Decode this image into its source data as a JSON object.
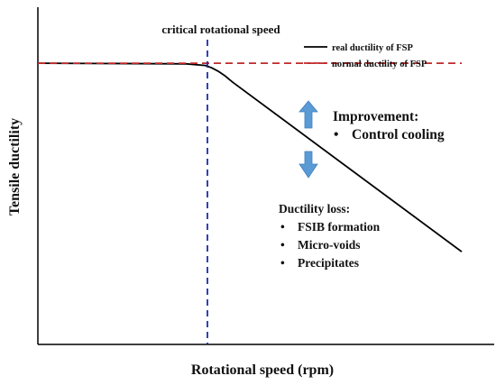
{
  "chart_data": {
    "type": "line",
    "title": "",
    "xlabel": "Rotational speed (rpm)",
    "ylabel": "Tensile ductility",
    "grid": false,
    "legend_position": "top-right",
    "series": [
      {
        "name": "real ductility of FSP",
        "color": "#000000",
        "style": "solid",
        "x": [
          0,
          35,
          39.5,
          41,
          42.5,
          44,
          46,
          100
        ],
        "y": [
          85,
          84.8,
          84.3,
          83.6,
          82.6,
          81.3,
          79.2,
          28
        ]
      },
      {
        "name": "normal ductility of FSP",
        "color": "#c0282a",
        "style": "dashed",
        "x": [
          0,
          100
        ],
        "y": [
          85,
          85
        ]
      }
    ],
    "critical_line": {
      "label": "critical rotational speed",
      "x": 40,
      "color": "#1c2bb4"
    },
    "annotations": {
      "improvement": {
        "heading": "Improvement:",
        "items": [
          "Control cooling"
        ],
        "arrow": "up",
        "arrow_color": "#5b9bd5"
      },
      "loss": {
        "heading": "Ductility loss:",
        "items": [
          "FSIB formation",
          "Micro-voids",
          "Precipitates"
        ],
        "arrow": "down",
        "arrow_color": "#5b9bd5"
      }
    },
    "bullet": "•"
  }
}
